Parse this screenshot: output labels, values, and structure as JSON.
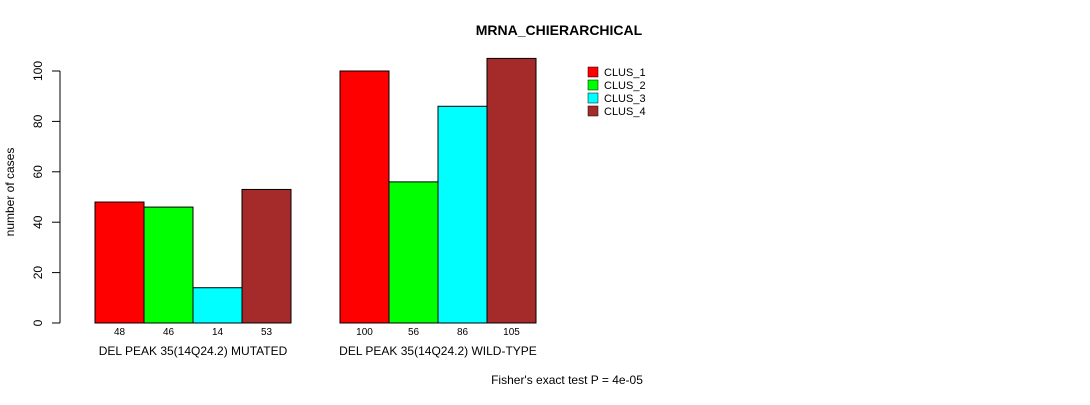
{
  "chart_data": {
    "type": "bar",
    "title": "MRNA_CHIERARCHICAL",
    "xlabel": "",
    "ylabel": "number of cases",
    "ylim": [
      0,
      105
    ],
    "yticks": [
      0,
      20,
      40,
      60,
      80,
      100
    ],
    "grid": false,
    "legend_position": "top-right",
    "categories": [
      "DEL PEAK 35(14Q24.2) MUTATED",
      "DEL PEAK 35(14Q24.2) WILD-TYPE"
    ],
    "series": [
      {
        "name": "CLUS_1",
        "color": "#ff0000",
        "values": [
          48,
          100
        ]
      },
      {
        "name": "CLUS_2",
        "color": "#00ff00",
        "values": [
          46,
          56
        ]
      },
      {
        "name": "CLUS_3",
        "color": "#00ffff",
        "values": [
          14,
          86
        ]
      },
      {
        "name": "CLUS_4",
        "color": "#a52a2a",
        "values": [
          53,
          105
        ]
      }
    ],
    "footnote": "Fisher's exact test P = 4e-05"
  }
}
